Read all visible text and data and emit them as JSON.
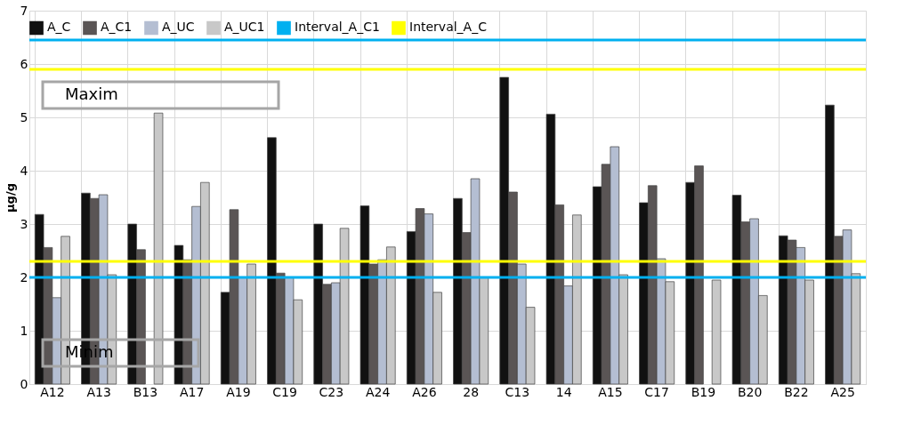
{
  "chart_data": {
    "type": "bar",
    "ylabel": "µg/g",
    "categories": [
      "A12",
      "A13",
      "B13",
      "A17",
      "A19",
      "C19",
      "C23",
      "A24",
      "A26",
      "28",
      "C13",
      "14",
      "A15",
      "C17",
      "B19",
      "B20",
      "B22",
      "A25"
    ],
    "series": [
      {
        "name": "A_C",
        "color": "#111111",
        "values": [
          3.18,
          3.58,
          3.0,
          2.6,
          1.72,
          4.62,
          3.0,
          3.34,
          2.86,
          3.48,
          5.75,
          5.06,
          3.7,
          3.4,
          3.78,
          3.54,
          2.78,
          5.23
        ]
      },
      {
        "name": "A_C1",
        "color": "#5a5555",
        "values": [
          2.56,
          3.48,
          2.52,
          2.33,
          3.27,
          2.08,
          1.87,
          2.25,
          3.29,
          2.84,
          3.6,
          3.36,
          4.12,
          3.72,
          4.09,
          3.04,
          2.7,
          2.77
        ]
      },
      {
        "name": "A_UC",
        "color": "#b4bed2",
        "values": [
          1.62,
          3.55,
          null,
          3.33,
          2.0,
          2.0,
          1.9,
          2.33,
          3.19,
          3.85,
          2.25,
          1.84,
          4.45,
          2.35,
          null,
          3.1,
          2.56,
          2.89
        ]
      },
      {
        "name": "A_UC1",
        "color": "#c8c8c8",
        "values": [
          2.77,
          2.05,
          5.08,
          3.78,
          2.25,
          1.58,
          2.92,
          2.57,
          1.72,
          2.0,
          1.44,
          3.17,
          2.05,
          1.92,
          1.95,
          1.66,
          1.95,
          2.07
        ]
      }
    ],
    "ref_lines": [
      {
        "axis": "y",
        "value": 6.45,
        "label": "Interval_A_C1",
        "color": "#00b0f0"
      },
      {
        "axis": "y",
        "value": 2.0,
        "color": "#00b0f0"
      },
      {
        "axis": "y",
        "value": 5.9,
        "label": "Interval_A_C",
        "color": "#ffff00"
      },
      {
        "axis": "y",
        "value": 2.3,
        "color": "#ffff00"
      }
    ],
    "annotations": [
      "Maxim",
      "Minim"
    ],
    "ylim": [
      0,
      7
    ],
    "yticks": [
      0,
      1,
      2,
      3,
      4,
      5,
      6,
      7
    ],
    "grid": true,
    "legend": "top"
  }
}
